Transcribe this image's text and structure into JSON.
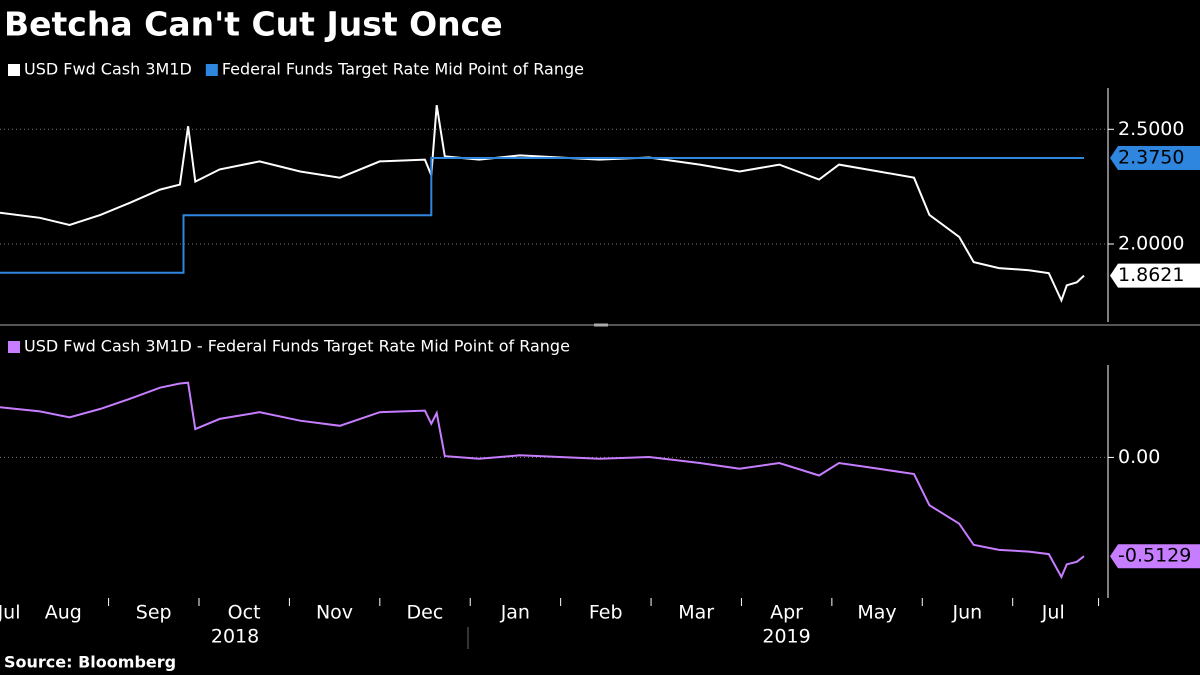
{
  "source": "Source: Bloomberg",
  "chart_data": [
    {
      "type": "line",
      "title": "Betcha Can't Cut Just Once",
      "xlim": [
        0.8,
        13
      ],
      "ylim": [
        1.66,
        2.68
      ],
      "yticks": [
        {
          "value": 2.5,
          "label": "2.5000"
        },
        {
          "value": 2,
          "label": "2.0000"
        }
      ],
      "grid": true,
      "series": [
        {
          "name": "USD Fwd Cash 3M1D",
          "color": "#ffffff",
          "last_value_label": "1.8621",
          "x": [
            0.8,
            1.24,
            1.57,
            1.91,
            2.24,
            2.57,
            2.79,
            2.88,
            2.96,
            3.23,
            3.67,
            4.12,
            4.56,
            5.0,
            5.5,
            5.57,
            5.63,
            5.72,
            6.1,
            6.55,
            6.99,
            7.43,
            7.98,
            8.54,
            8.98,
            9.42,
            9.86,
            10.08,
            10.52,
            10.91,
            11.08,
            11.41,
            11.57,
            11.85,
            12.18,
            12.4,
            12.54,
            12.6,
            12.71,
            12.79
          ],
          "values": [
            2.136,
            2.114,
            2.083,
            2.127,
            2.18,
            2.237,
            2.259,
            2.513,
            2.272,
            2.325,
            2.36,
            2.316,
            2.289,
            2.36,
            2.368,
            2.3,
            2.605,
            2.382,
            2.368,
            2.386,
            2.377,
            2.368,
            2.377,
            2.346,
            2.316,
            2.346,
            2.281,
            2.346,
            2.316,
            2.289,
            2.127,
            2.031,
            1.921,
            1.895,
            1.886,
            1.873,
            1.754,
            1.82,
            1.833,
            1.8621
          ]
        },
        {
          "name": "Federal Funds Target Rate Mid Point of Range",
          "color": "#2e86de",
          "last_value_label": "2.3750",
          "x": [
            0.8,
            2.83,
            2.83,
            5.57,
            5.57,
            12.79
          ],
          "values": [
            1.875,
            1.875,
            2.125,
            2.125,
            2.375,
            2.375
          ]
        }
      ]
    },
    {
      "type": "line",
      "xlim": [
        0.8,
        13
      ],
      "ylim": [
        -0.73,
        0.48
      ],
      "yticks": [
        {
          "value": 0,
          "label": "0.00"
        }
      ],
      "grid": true,
      "xticks": [
        {
          "value": 0.9,
          "label": "Jul"
        },
        {
          "value": 1.5,
          "label": "Aug"
        },
        {
          "value": 2.5,
          "label": "Sep"
        },
        {
          "value": 3.5,
          "label": "Oct"
        },
        {
          "value": 4.5,
          "label": "Nov"
        },
        {
          "value": 5.5,
          "label": "Dec"
        },
        {
          "value": 6.5,
          "label": "Jan"
        },
        {
          "value": 7.5,
          "label": "Feb"
        },
        {
          "value": 8.5,
          "label": "Mar"
        },
        {
          "value": 9.5,
          "label": "Apr"
        },
        {
          "value": 10.5,
          "label": "May"
        },
        {
          "value": 11.5,
          "label": "Jun"
        },
        {
          "value": 12.45,
          "label": "Jul"
        }
      ],
      "year_labels": [
        {
          "value": 3.4,
          "label": "2018"
        },
        {
          "value": 9.5,
          "label": "2019"
        }
      ],
      "series": [
        {
          "name": "USD Fwd Cash 3M1D - Federal Funds Target Rate Mid Point of Range",
          "color": "#c77dff",
          "last_value_label": "-0.5129",
          "x": [
            0.8,
            1.24,
            1.57,
            1.91,
            2.24,
            2.57,
            2.79,
            2.88,
            2.96,
            3.23,
            3.67,
            4.12,
            4.56,
            5.0,
            5.5,
            5.57,
            5.63,
            5.72,
            6.1,
            6.55,
            6.99,
            7.43,
            7.98,
            8.54,
            8.98,
            9.42,
            9.86,
            10.08,
            10.52,
            10.91,
            11.08,
            11.41,
            11.57,
            11.85,
            12.18,
            12.4,
            12.54,
            12.6,
            12.71,
            12.79
          ],
          "values": [
            0.261,
            0.239,
            0.208,
            0.252,
            0.305,
            0.362,
            0.384,
            0.388,
            0.147,
            0.2,
            0.235,
            0.191,
            0.164,
            0.235,
            0.243,
            0.175,
            0.23,
            0.007,
            -0.007,
            0.011,
            0.002,
            -0.007,
            0.002,
            -0.029,
            -0.059,
            -0.029,
            -0.094,
            -0.029,
            -0.059,
            -0.086,
            -0.248,
            -0.344,
            -0.454,
            -0.48,
            -0.489,
            -0.502,
            -0.621,
            -0.555,
            -0.542,
            -0.5129
          ]
        }
      ]
    }
  ]
}
